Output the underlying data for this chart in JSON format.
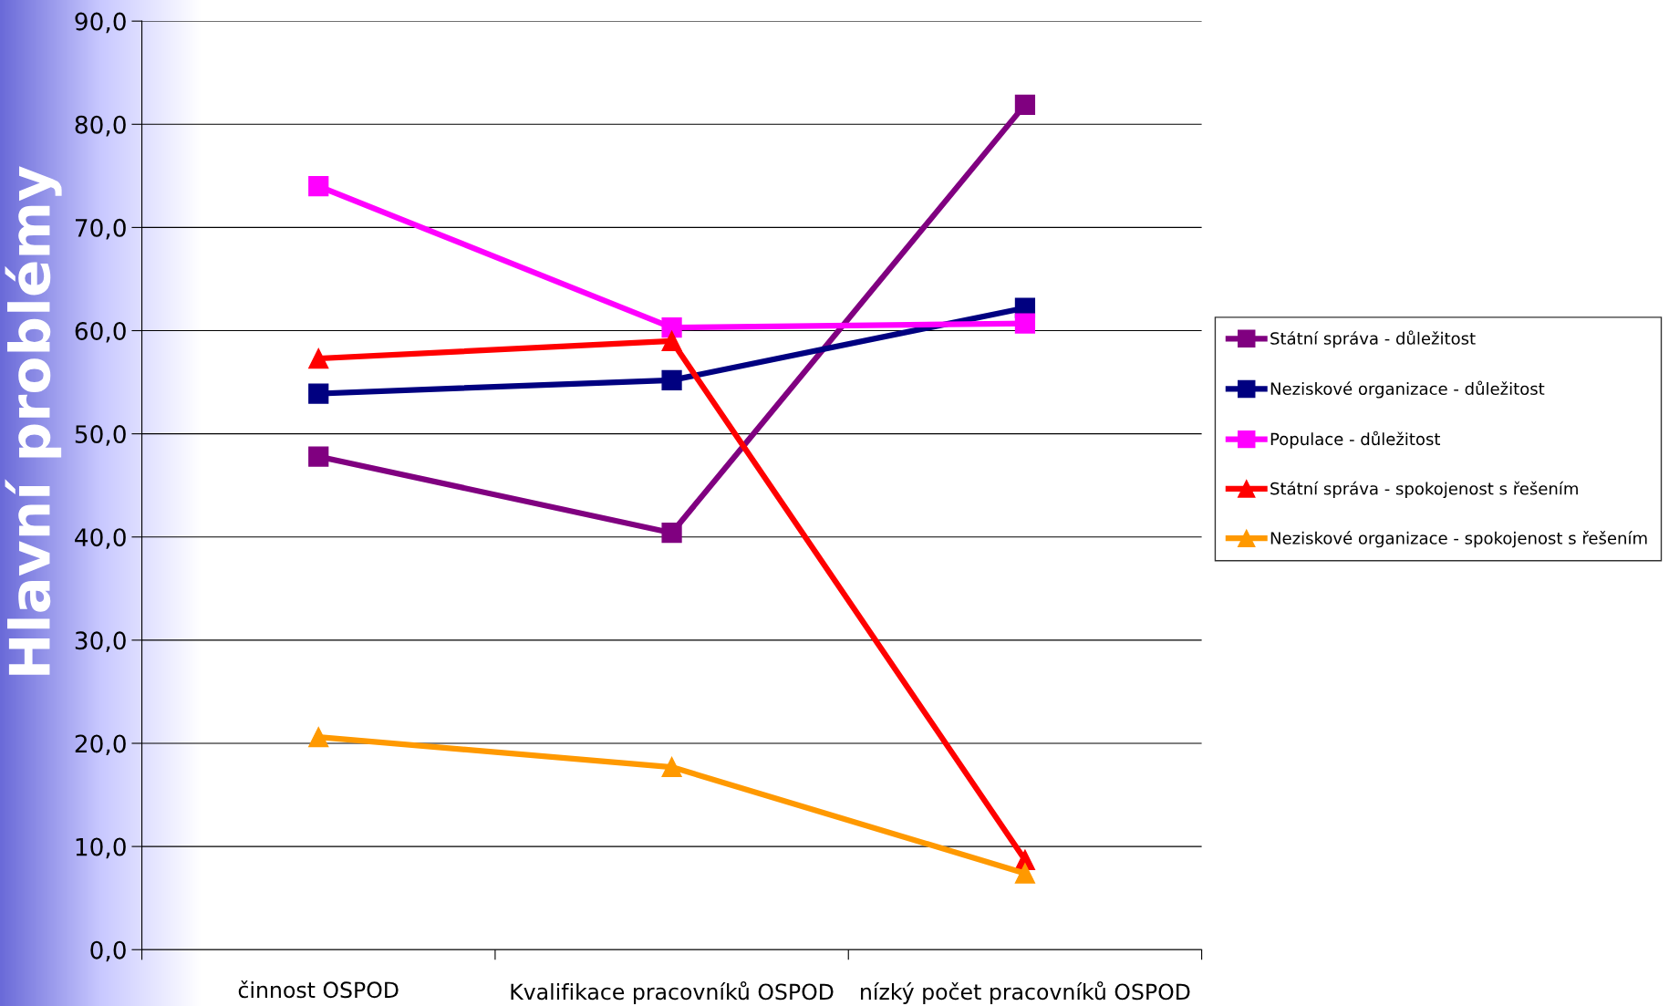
{
  "chart_data": {
    "type": "line",
    "title": "Hlavní problémy",
    "categories": [
      "činnost OSPOD",
      "Kvalifikace pracovníků OSPOD",
      "nízký počet pracovníků OSPOD"
    ],
    "series": [
      {
        "name": "Státní správa - důležitost",
        "color": "#800080",
        "marker": "square",
        "values": [
          47.8,
          40.4,
          81.9
        ]
      },
      {
        "name": "Neziskové organizace - důležitost",
        "color": "#000080",
        "marker": "square",
        "values": [
          53.9,
          55.2,
          62.2
        ]
      },
      {
        "name": "Populace - důležitost",
        "color": "#ff00ff",
        "marker": "square",
        "values": [
          74.0,
          60.3,
          60.7
        ]
      },
      {
        "name": "Státní správa - spokojenost s řešením",
        "color": "#ff0000",
        "marker": "triangle",
        "values": [
          57.3,
          59.0,
          8.7
        ]
      },
      {
        "name": "Neziskové organizace - spokojenost s řešením",
        "color": "#ff9900",
        "marker": "triangle",
        "values": [
          20.6,
          17.7,
          7.4
        ]
      }
    ],
    "ylim": [
      0,
      90
    ],
    "yticks": [
      {
        "value": 0,
        "label": "0,0"
      },
      {
        "value": 10,
        "label": "10,0"
      },
      {
        "value": 20,
        "label": "20,0"
      },
      {
        "value": 30,
        "label": "30,0"
      },
      {
        "value": 40,
        "label": "40,0"
      },
      {
        "value": 50,
        "label": "50,0"
      },
      {
        "value": 60,
        "label": "60,0"
      },
      {
        "value": 70,
        "label": "70,0"
      },
      {
        "value": 80,
        "label": "80,0"
      },
      {
        "value": 90,
        "label": "90,0"
      }
    ],
    "grid": "y",
    "legend": "right",
    "line_style": "solid"
  }
}
